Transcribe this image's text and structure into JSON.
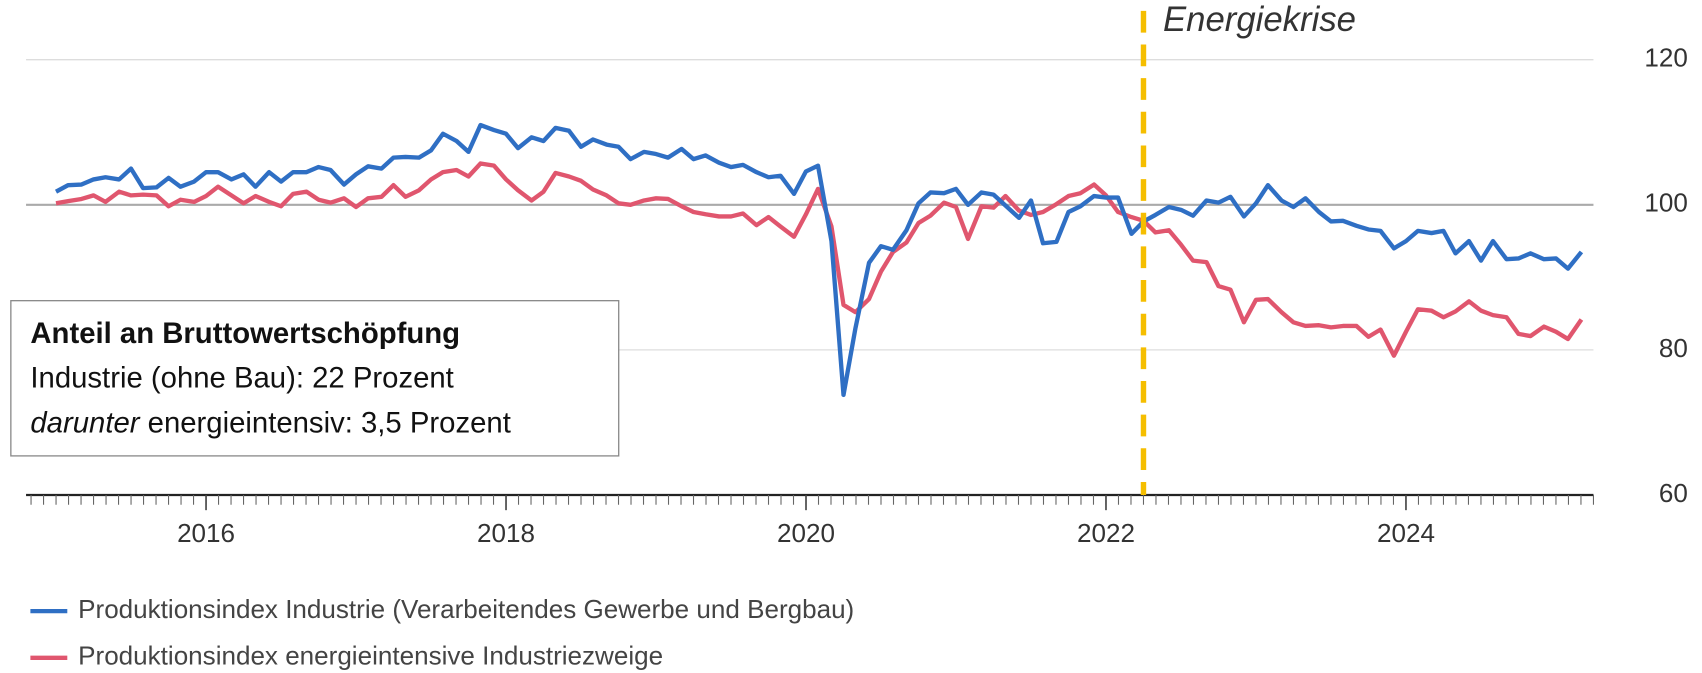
{
  "chart_data": {
    "type": "line",
    "x": [
      2015.0,
      2015.08,
      2015.17,
      2015.25,
      2015.33,
      2015.42,
      2015.5,
      2015.58,
      2015.67,
      2015.75,
      2015.83,
      2015.92,
      2016.0,
      2016.08,
      2016.17,
      2016.25,
      2016.33,
      2016.42,
      2016.5,
      2016.58,
      2016.67,
      2016.75,
      2016.83,
      2016.92,
      2017.0,
      2017.08,
      2017.17,
      2017.25,
      2017.33,
      2017.42,
      2017.5,
      2017.58,
      2017.67,
      2017.75,
      2017.83,
      2017.92,
      2018.0,
      2018.08,
      2018.17,
      2018.25,
      2018.33,
      2018.42,
      2018.5,
      2018.58,
      2018.67,
      2018.75,
      2018.83,
      2018.92,
      2019.0,
      2019.08,
      2019.17,
      2019.25,
      2019.33,
      2019.42,
      2019.5,
      2019.58,
      2019.67,
      2019.75,
      2019.83,
      2019.92,
      2020.0,
      2020.08,
      2020.17,
      2020.25,
      2020.33,
      2020.42,
      2020.5,
      2020.58,
      2020.67,
      2020.75,
      2020.83,
      2020.92,
      2021.0,
      2021.08,
      2021.17,
      2021.25,
      2021.33,
      2021.42,
      2021.5,
      2021.58,
      2021.67,
      2021.75,
      2021.83,
      2021.92,
      2022.0,
      2022.08,
      2022.17,
      2022.25,
      2022.33,
      2022.42,
      2022.5,
      2022.58,
      2022.67,
      2022.75,
      2022.83,
      2022.92,
      2023.0,
      2023.08,
      2023.17,
      2023.25,
      2023.33,
      2023.42,
      2023.5,
      2023.58,
      2023.67,
      2023.75,
      2023.83,
      2023.92,
      2024.0,
      2024.08,
      2024.17,
      2024.25,
      2024.33,
      2024.42,
      2024.5,
      2024.58,
      2024.67,
      2024.75,
      2024.83,
      2024.92,
      2025.0,
      2025.08,
      2025.17
    ],
    "series": [
      {
        "name": "Produktionsindex Industrie (Verarbeitendes Gewerbe und Bergbau)",
        "color": "#2f6fc4",
        "values": [
          101.8,
          102.7,
          102.8,
          103.5,
          103.8,
          103.5,
          105,
          102.3,
          102.4,
          103.7,
          102.5,
          103.2,
          104.5,
          104.5,
          103.5,
          104.2,
          102.5,
          104.5,
          103.2,
          104.5,
          104.5,
          105.2,
          104.8,
          102.8,
          104.2,
          105.3,
          105,
          106.5,
          106.6,
          106.5,
          107.5,
          109.8,
          108.8,
          107.3,
          111,
          110.3,
          109.8,
          107.8,
          109.3,
          108.8,
          110.6,
          110.2,
          108,
          109,
          108.3,
          108,
          106.3,
          107.3,
          107,
          106.5,
          107.7,
          106.3,
          106.8,
          105.8,
          105.2,
          105.5,
          104.5,
          103.8,
          104,
          101.5,
          104.6,
          105.4,
          95,
          73.8,
          83,
          92,
          94.3,
          93.8,
          96.5,
          100.2,
          101.7,
          101.6,
          102.2,
          100,
          101.7,
          101.4,
          99.9,
          98.2,
          100.6,
          94.7,
          94.9,
          99,
          99.8,
          101.2,
          101,
          101,
          96,
          97.7,
          98.6,
          99.7,
          99.3,
          98.5,
          100.6,
          100.3,
          101.1,
          98.4,
          100.2,
          102.7,
          100.6,
          99.7,
          100.9,
          99,
          97.7,
          97.8,
          97.1,
          96.6,
          96.4,
          94,
          95,
          96.4,
          96.1,
          96.4,
          93.3,
          95,
          92.3,
          95,
          92.5,
          92.6,
          93.3,
          92.5,
          92.6,
          91.2,
          93.5
        ]
      },
      {
        "name": "Produktionsindex energieintensive Industriezweige",
        "color": "#e0566e",
        "values": [
          100.2,
          100.5,
          100.8,
          101.3,
          100.4,
          101.8,
          101.3,
          101.4,
          101.3,
          99.8,
          100.7,
          100.4,
          101.2,
          102.5,
          101.3,
          100.2,
          101.2,
          100.4,
          99.8,
          101.5,
          101.8,
          100.7,
          100.3,
          100.9,
          99.7,
          100.9,
          101.1,
          102.7,
          101.1,
          102,
          103.5,
          104.5,
          104.8,
          103.9,
          105.7,
          105.4,
          103.5,
          102,
          100.6,
          101.8,
          104.4,
          103.9,
          103.3,
          102.1,
          101.3,
          100.2,
          100,
          100.6,
          100.9,
          100.8,
          99.8,
          99,
          98.7,
          98.4,
          98.4,
          98.8,
          97.2,
          98.3,
          97,
          95.6,
          98.7,
          102.2,
          97,
          86.2,
          85.2,
          87,
          90.8,
          93.5,
          94.8,
          97.5,
          98.5,
          100.3,
          99.7,
          95.3,
          99.8,
          99.6,
          101.2,
          99.2,
          98.6,
          99,
          100.1,
          101.2,
          101.6,
          102.8,
          101.3,
          99,
          98.3,
          97.8,
          96.2,
          96.5,
          94.5,
          92.3,
          92.1,
          88.8,
          88.3,
          83.8,
          86.9,
          87,
          85.2,
          83.8,
          83.3,
          83.4,
          83.1,
          83.3,
          83.3,
          81.8,
          82.8,
          79.2,
          82.5,
          85.6,
          85.4,
          84.5,
          85.3,
          86.7,
          85.4,
          84.8,
          84.5,
          82.2,
          81.9,
          83.2,
          82.5,
          81.5,
          84.2
        ]
      }
    ],
    "xlim": [
      2014.8,
      2025.25
    ],
    "xticks": [
      2016,
      2018,
      2020,
      2022,
      2024
    ],
    "ylim": [
      60,
      120
    ],
    "yticks": [
      60,
      80,
      100,
      120
    ],
    "reference_line": 100,
    "grid": true,
    "event": {
      "label": "Energiekrise",
      "x": 2022.25,
      "color": "#f5be00"
    },
    "info_box": {
      "title": "Anteil an Bruttowertschöpfung",
      "line1": "Industrie (ohne Bau): 22 Prozent",
      "line2_italic": "darunter",
      "line2_rest": " energieintensiv: 3,5 Prozent"
    },
    "legend": "bottom"
  }
}
